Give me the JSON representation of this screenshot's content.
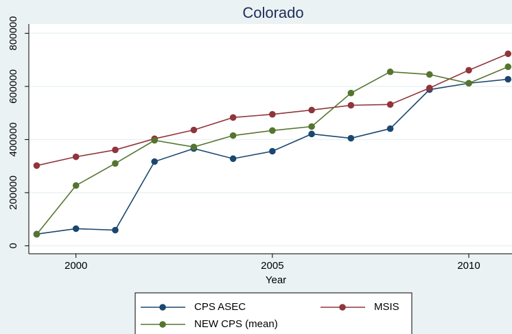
{
  "chart_data": {
    "type": "line",
    "title": "Colorado",
    "xlabel": "Year",
    "x": [
      1999,
      2000,
      2001,
      2002,
      2003,
      2004,
      2005,
      2006,
      2007,
      2008,
      2009,
      2010,
      2011
    ],
    "series": [
      {
        "name": "CPS ASEC",
        "color": "#1a476f",
        "values": [
          44000,
          64500,
          59000,
          317000,
          366000,
          328000,
          356000,
          421000,
          405000,
          441000,
          588000,
          612000,
          627000
        ]
      },
      {
        "name": "MSIS",
        "color": "#90353b",
        "values": [
          302000,
          335000,
          361000,
          403000,
          436000,
          483000,
          495000,
          511000,
          529000,
          532000,
          594000,
          661000,
          723000
        ]
      },
      {
        "name": "NEW CPS (mean)",
        "color": "#55752f",
        "values": [
          43000,
          227000,
          310000,
          397000,
          372000,
          415000,
          434000,
          449000,
          575000,
          655000,
          645000,
          612000,
          674000
        ]
      }
    ],
    "xlim": [
      1998.8,
      2011.1
    ],
    "xticks": [
      2000,
      2005,
      2010
    ],
    "ylim": [
      -30000,
      835000
    ],
    "yticks": [
      0,
      200000,
      400000,
      600000,
      800000
    ],
    "grid": true,
    "legend": "bottom"
  }
}
